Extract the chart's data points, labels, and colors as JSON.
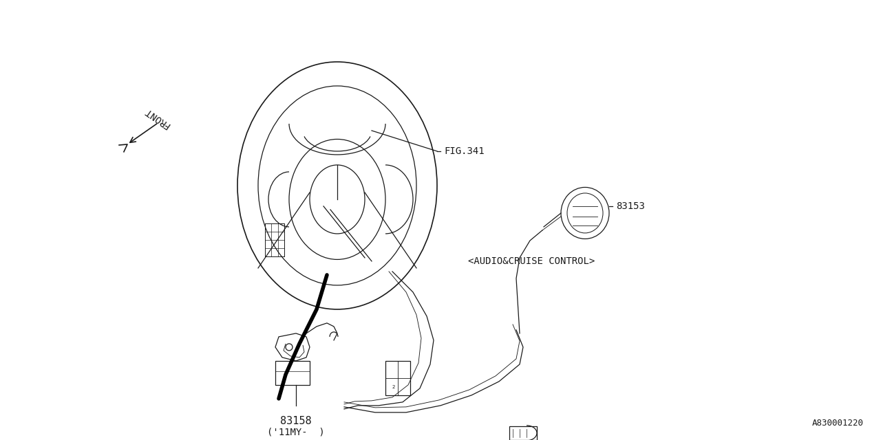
{
  "bg_color": "#ffffff",
  "line_color": "#1a1a1a",
  "title_code": "A830001220",
  "fig_label": "FIG.341",
  "part_83153": "83153",
  "part_83158": "83158",
  "audio_label": "<AUDIO&CRUISE CONTROL>",
  "year_label": "('11MY-  )",
  "front_label": "FRONT"
}
